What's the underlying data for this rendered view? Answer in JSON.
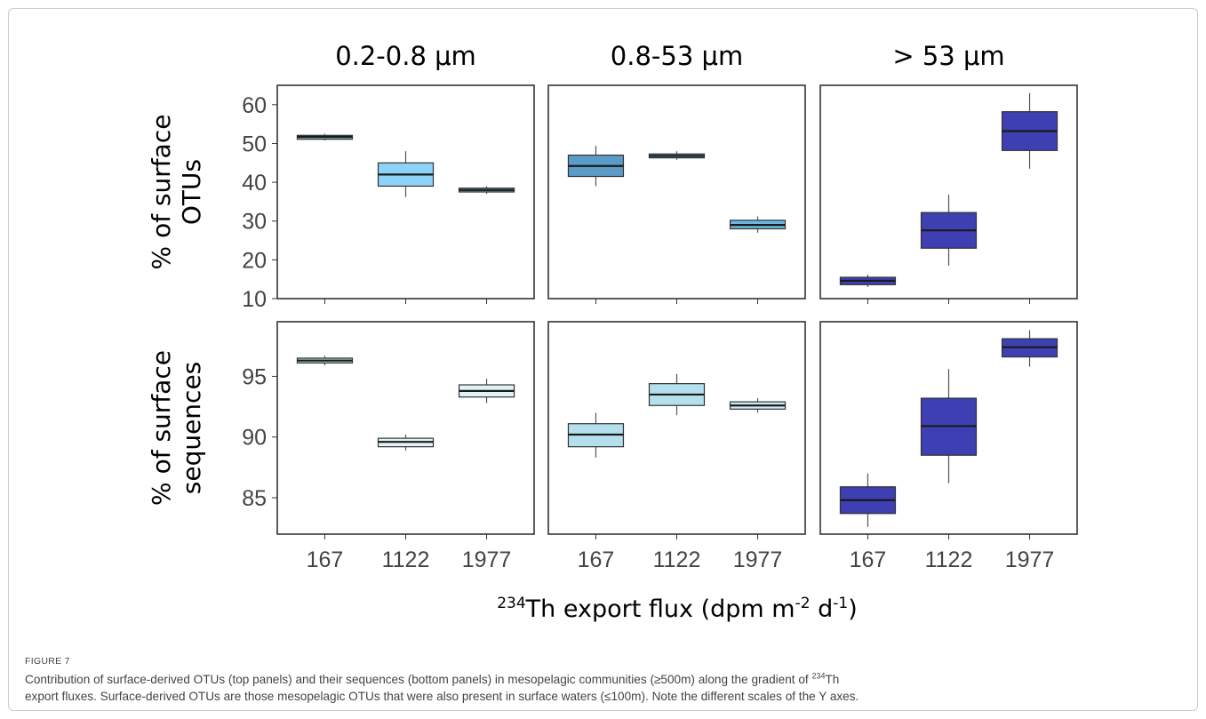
{
  "chart_data": {
    "type": "box",
    "columns": [
      "0.2-0.8 μm",
      "0.8-53 μm",
      "> 53 μm"
    ],
    "categories": [
      "167",
      "1122",
      "1977"
    ],
    "xlabel": {
      "pre": "234",
      "mid": "Th export flux (dpm m",
      "sup1": "-2",
      "mid2": " d",
      "sup2": "-1",
      "post": ")"
    },
    "rows": [
      {
        "ylabel_line1": "% of surface",
        "ylabel_line2": "OTUs",
        "yticks": [
          "10",
          "20",
          "30",
          "40",
          "50",
          "60"
        ],
        "ylim": [
          10,
          65
        ],
        "panels": [
          {
            "color": "#7db3c3",
            "boxes": [
              {
                "x": "167",
                "min": 50.8,
                "q1": 51.1,
                "median": 51.7,
                "q3": 52.1,
                "max": 52.5
              },
              {
                "x": "1122",
                "min": 36.2,
                "q1": 39.0,
                "median": 42.0,
                "q3": 45.0,
                "max": 48.0,
                "color": "#8dd3f5"
              },
              {
                "x": "1977",
                "min": 37.0,
                "q1": 37.5,
                "median": 38.0,
                "q3": 38.5,
                "max": 39.0
              }
            ]
          },
          {
            "color": "#5b9bc8",
            "boxes": [
              {
                "x": "167",
                "min": 39.0,
                "q1": 41.5,
                "median": 44.2,
                "q3": 47.0,
                "max": 49.4
              },
              {
                "x": "1122",
                "min": 45.8,
                "q1": 46.3,
                "median": 46.8,
                "q3": 47.3,
                "max": 48.0
              },
              {
                "x": "1977",
                "min": 27.0,
                "q1": 28.0,
                "median": 29.0,
                "q3": 30.2,
                "max": 31.2,
                "color": "#6ab6e2"
              }
            ]
          },
          {
            "color": "#3e3fb3",
            "boxes": [
              {
                "x": "167",
                "min": 13.0,
                "q1": 13.6,
                "median": 14.6,
                "q3": 15.5,
                "max": 16.2
              },
              {
                "x": "1122",
                "min": 18.5,
                "q1": 23.0,
                "median": 27.6,
                "q3": 32.2,
                "max": 36.8
              },
              {
                "x": "1977",
                "min": 43.5,
                "q1": 48.2,
                "median": 53.2,
                "q3": 58.2,
                "max": 63.0
              }
            ]
          }
        ]
      },
      {
        "ylabel_line1": "% of surface",
        "ylabel_line2": "sequences",
        "yticks": [
          "85",
          "90",
          "95"
        ],
        "ylim": [
          82,
          99.5
        ],
        "panels": [
          {
            "color": "#e0f3f6",
            "boxes": [
              {
                "x": "167",
                "min": 95.9,
                "q1": 96.1,
                "median": 96.3,
                "q3": 96.5,
                "max": 96.7,
                "color": "#a9d0c9"
              },
              {
                "x": "1122",
                "min": 88.9,
                "q1": 89.2,
                "median": 89.6,
                "q3": 89.9,
                "max": 90.2
              },
              {
                "x": "1977",
                "min": 92.8,
                "q1": 93.3,
                "median": 93.8,
                "q3": 94.3,
                "max": 94.8
              }
            ]
          },
          {
            "color": "#b4e0ee",
            "boxes": [
              {
                "x": "167",
                "min": 88.3,
                "q1": 89.2,
                "median": 90.2,
                "q3": 91.1,
                "max": 92.0
              },
              {
                "x": "1122",
                "min": 91.8,
                "q1": 92.6,
                "median": 93.5,
                "q3": 94.4,
                "max": 95.2
              },
              {
                "x": "1977",
                "min": 92.0,
                "q1": 92.3,
                "median": 92.6,
                "q3": 92.9,
                "max": 93.2,
                "color": "#c9edf6"
              }
            ]
          },
          {
            "color": "#3e3fb3",
            "boxes": [
              {
                "x": "167",
                "min": 82.6,
                "q1": 83.7,
                "median": 84.8,
                "q3": 85.9,
                "max": 87.0
              },
              {
                "x": "1122",
                "min": 86.2,
                "q1": 88.5,
                "median": 90.9,
                "q3": 93.2,
                "max": 95.6
              },
              {
                "x": "1977",
                "min": 95.8,
                "q1": 96.6,
                "median": 97.4,
                "q3": 98.1,
                "max": 98.8
              }
            ]
          }
        ]
      }
    ]
  },
  "caption": {
    "label": "FIGURE 7",
    "line1_before": "Contribution of surface-derived OTUs (top panels) and their sequences (bottom panels) in mesopelagic communities (≥500m) along the gradient of ",
    "line1_sup": "234",
    "line1_after": "Th",
    "line2": "export fluxes. Surface-derived OTUs are those mesopelagic OTUs that were also present in surface waters (≤100m). Note the different scales of the Y axes."
  }
}
